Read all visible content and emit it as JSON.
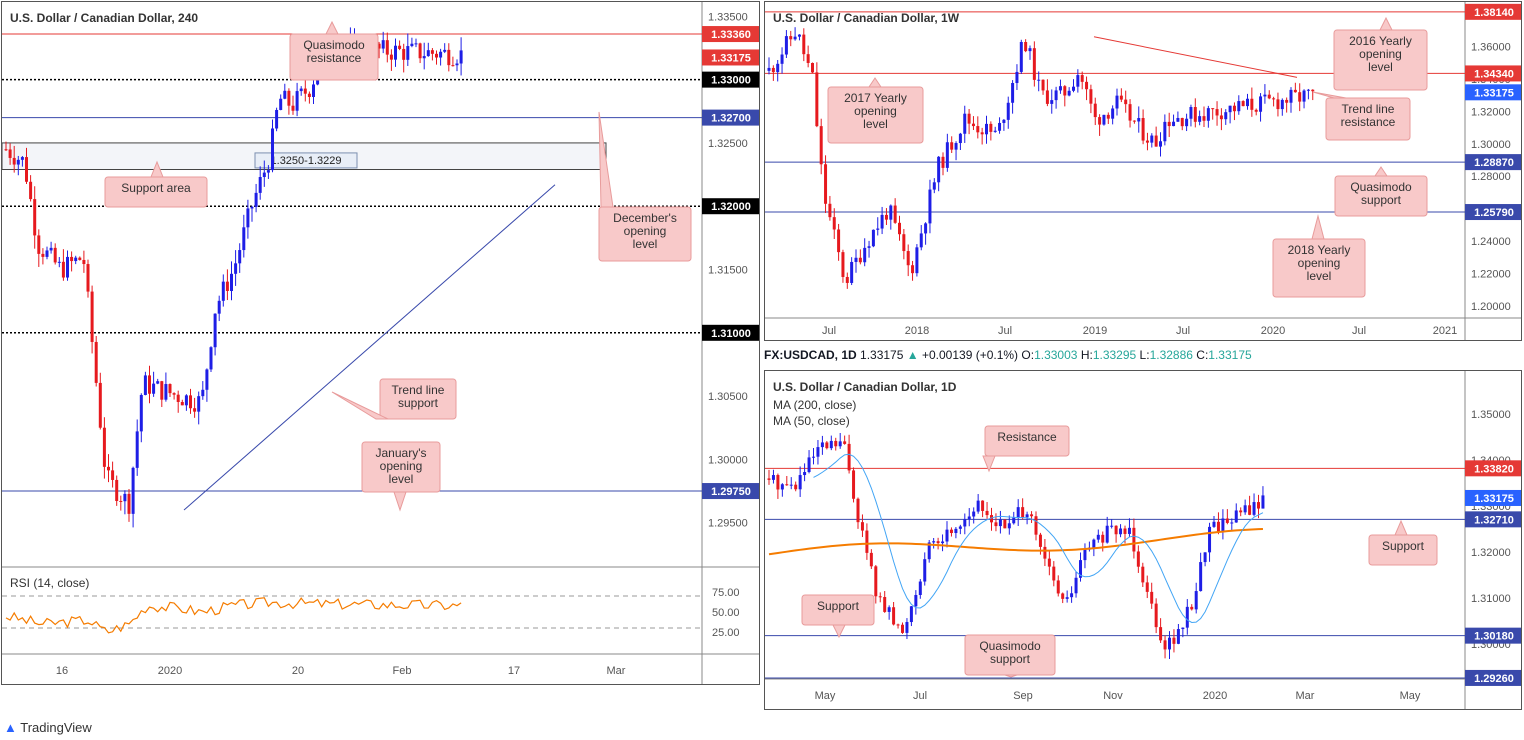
{
  "chart_data": [
    {
      "type": "candlestick",
      "title": "U.S. Dollar / Canadian Dollar, 240",
      "ylim": [
        1.2915,
        1.3355
      ],
      "y_ticks": [
        "1.33500",
        "1.33000",
        "1.32500",
        "1.32000",
        "1.31500",
        "1.31000",
        "1.30500",
        "1.30000",
        "1.29500"
      ],
      "x_ticks": [
        "16",
        "2020",
        "20",
        "Feb",
        "17",
        "Mar"
      ],
      "levels": [
        {
          "value": 1.3336,
          "label": "1.33360",
          "color": "#e53935",
          "style": "solid"
        },
        {
          "value": 1.33175,
          "label": "1.33175",
          "color": "#e53935",
          "style": "price"
        },
        {
          "value": 1.33,
          "label": "1.33000",
          "color": "#000000",
          "style": "dotted"
        },
        {
          "value": 1.327,
          "label": "1.32700",
          "color": "#3949ab",
          "style": "solid"
        },
        {
          "value": 1.32,
          "label": "1.32000",
          "color": "#000000",
          "style": "dotted"
        },
        {
          "value": 1.31,
          "label": "1.31000",
          "color": "#000000",
          "style": "dotted"
        },
        {
          "value": 1.2975,
          "label": "1.29750",
          "color": "#3949ab",
          "style": "solid"
        }
      ],
      "zone": {
        "from": 1.3229,
        "to": 1.325,
        "label": "1.3250-1.3229"
      },
      "trend_line": {
        "from": [
          0.26,
          1.296
        ],
        "to": [
          0.79,
          1.3217
        ],
        "color": "#3949ab"
      },
      "annotations": [
        "Quasimodo resistance",
        "Support area",
        "December's opening level",
        "Trend line support",
        "January's opening level"
      ],
      "rsi": {
        "label": "RSI (14, close)",
        "ticks": [
          "75.00",
          "50.00",
          "25.00"
        ],
        "upper": 70,
        "lower": 30
      }
    },
    {
      "type": "candlestick",
      "title": "U.S. Dollar / Canadian Dollar, 1W",
      "ylim": [
        1.195,
        1.385
      ],
      "y_ticks": [
        "1.36000",
        "1.34000",
        "1.32000",
        "1.30000",
        "1.28000",
        "1.26000",
        "1.24000",
        "1.22000",
        "1.20000"
      ],
      "x_ticks": [
        "Jul",
        "2018",
        "Jul",
        "2019",
        "Jul",
        "2020",
        "Jul",
        "2021"
      ],
      "levels": [
        {
          "value": 1.3814,
          "label": "1.38140",
          "color": "#e53935"
        },
        {
          "value": 1.3434,
          "label": "1.34340",
          "color": "#e53935"
        },
        {
          "value": 1.33175,
          "label": "1.33175",
          "color": "#2962ff"
        },
        {
          "value": 1.2887,
          "label": "1.28870",
          "color": "#3949ab"
        },
        {
          "value": 1.2579,
          "label": "1.25790",
          "color": "#3949ab"
        }
      ],
      "trend_line": {
        "from": [
          0.47,
          1.366
        ],
        "to": [
          0.76,
          1.341
        ],
        "color": "#e53935"
      },
      "annotations": [
        "2016 Yearly opening level",
        "2017 Yearly opening level",
        "Trend line resistance",
        "Quasimodo support",
        "2018 Yearly opening level"
      ]
    },
    {
      "type": "candlestick",
      "header": {
        "symbol": "FX:USDCAD, 1D",
        "last": "1.33175",
        "change": "+0.00139 (+0.1%)",
        "o": "1.33003",
        "h": "1.33295",
        "l": "1.32886",
        "c": "1.33175"
      },
      "title": "U.S. Dollar / Canadian Dollar, 1D",
      "ma": [
        "MA (200, close)",
        "MA (50, close)"
      ],
      "ylim": [
        1.2915,
        1.3585
      ],
      "y_ticks": [
        "1.35000",
        "1.34000",
        "1.33000",
        "1.32000",
        "1.31000",
        "1.30000"
      ],
      "x_ticks": [
        "May",
        "Jul",
        "Sep",
        "Nov",
        "2020",
        "Mar",
        "May"
      ],
      "levels": [
        {
          "value": 1.3382,
          "label": "1.33820",
          "color": "#e53935"
        },
        {
          "value": 1.33175,
          "label": "1.33175",
          "color": "#2962ff"
        },
        {
          "value": 1.3271,
          "label": "1.32710",
          "color": "#3949ab"
        },
        {
          "value": 1.3018,
          "label": "1.30180",
          "color": "#3949ab"
        },
        {
          "value": 1.2926,
          "label": "1.29260",
          "color": "#3949ab"
        }
      ],
      "annotations": [
        "Resistance",
        "Support",
        "Support",
        "Quasimodo support"
      ]
    }
  ],
  "header_labels": {
    "o": "O:",
    "h": "H:",
    "l": "L:",
    "c": "C:"
  },
  "brand": "TradingView"
}
